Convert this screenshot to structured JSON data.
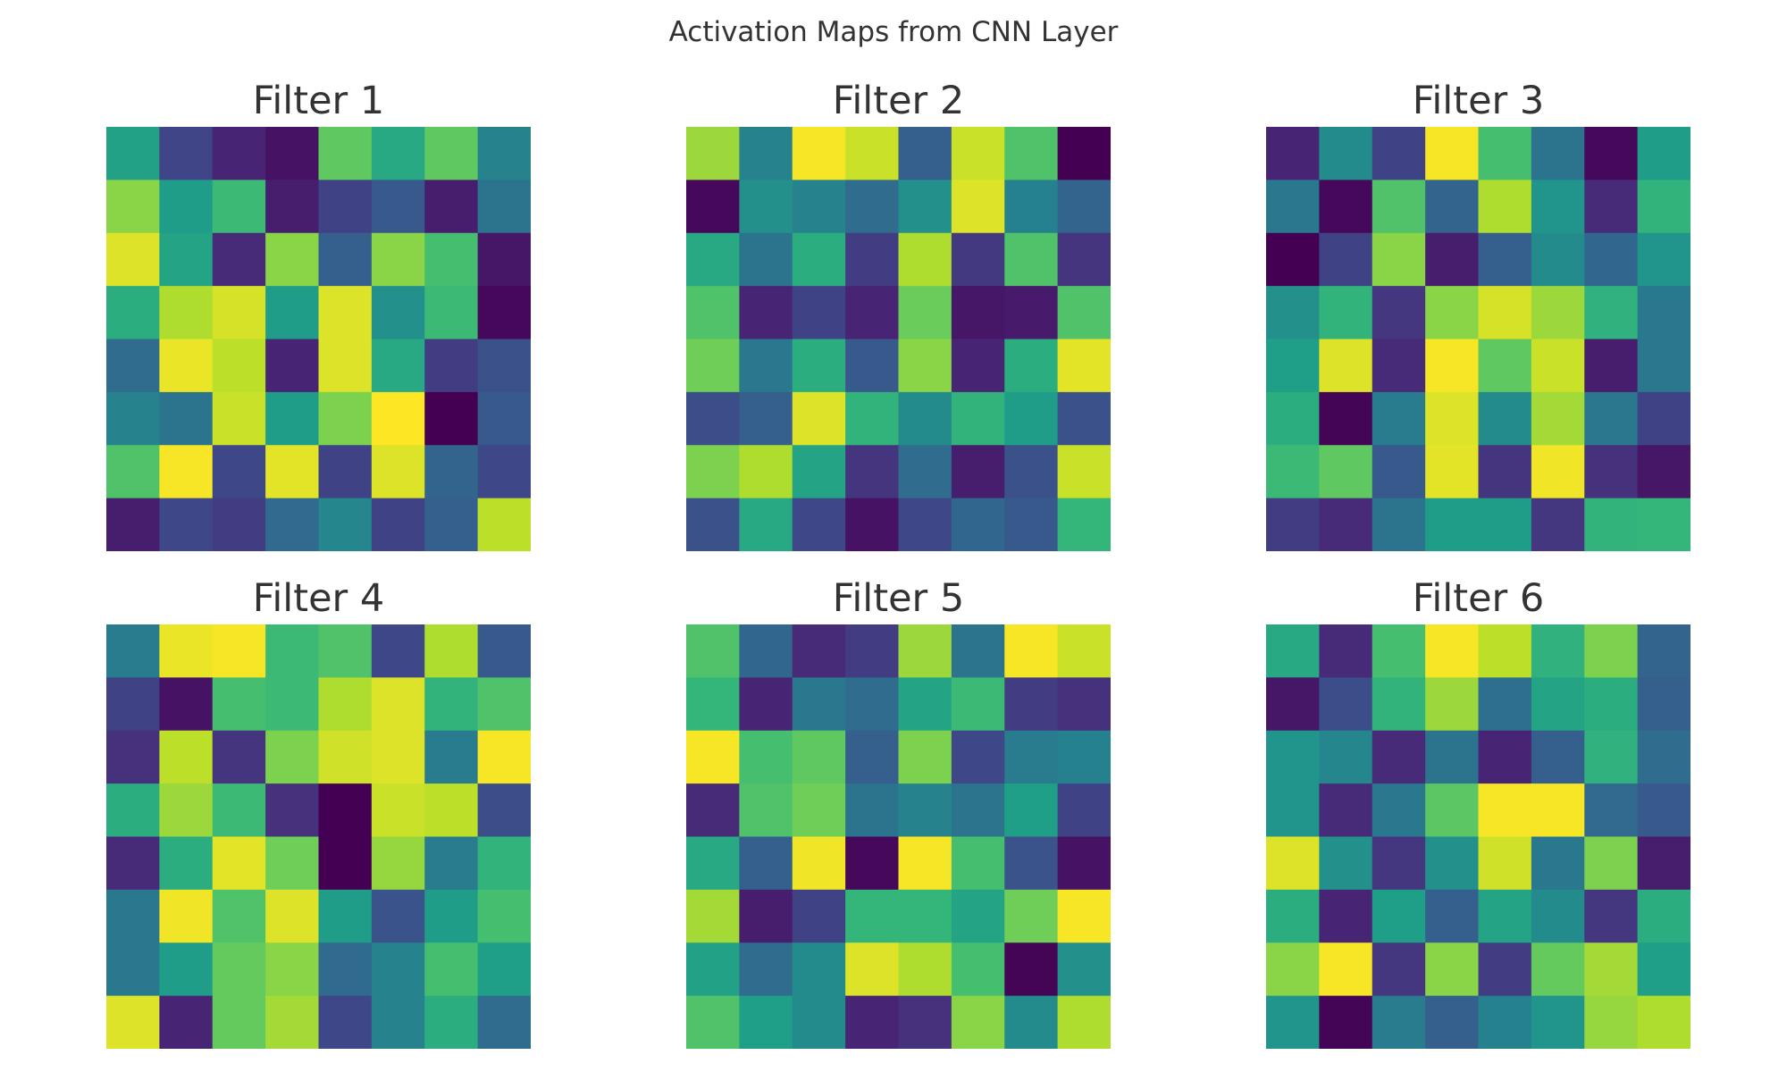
{
  "figure": {
    "title": "Activation Maps from CNN Layer"
  },
  "chart_data": {
    "type": "heatmap",
    "colormap": "viridis",
    "value_range": [
      0,
      1
    ],
    "colormap_stops": [
      "#440154",
      "#482878",
      "#3e4989",
      "#31688e",
      "#26828e",
      "#1f9e89",
      "#35b779",
      "#6ece58",
      "#b5de2b",
      "#fde725"
    ],
    "grid": false,
    "axes_visible": false,
    "panels": [
      {
        "title": "Filter 1",
        "values": [
          [
            0.57,
            0.21,
            0.1,
            0.05,
            0.75,
            0.6,
            0.75,
            0.45
          ],
          [
            0.82,
            0.55,
            0.68,
            0.08,
            0.2,
            0.28,
            0.08,
            0.38
          ],
          [
            0.95,
            0.58,
            0.12,
            0.82,
            0.3,
            0.82,
            0.7,
            0.06
          ],
          [
            0.62,
            0.88,
            0.94,
            0.55,
            0.95,
            0.5,
            0.68,
            0.02
          ],
          [
            0.35,
            0.97,
            0.9,
            0.1,
            0.95,
            0.6,
            0.18,
            0.25
          ],
          [
            0.45,
            0.38,
            0.92,
            0.55,
            0.8,
            1.0,
            0.0,
            0.28
          ],
          [
            0.72,
            0.99,
            0.22,
            0.96,
            0.2,
            0.95,
            0.32,
            0.22
          ],
          [
            0.08,
            0.22,
            0.18,
            0.34,
            0.46,
            0.2,
            0.3,
            0.9
          ]
        ]
      },
      {
        "title": "Filter 2",
        "values": [
          [
            0.85,
            0.45,
            0.99,
            0.92,
            0.3,
            0.92,
            0.72,
            0.0
          ],
          [
            0.02,
            0.5,
            0.45,
            0.35,
            0.5,
            0.95,
            0.44,
            0.32
          ],
          [
            0.6,
            0.38,
            0.62,
            0.18,
            0.88,
            0.17,
            0.72,
            0.15
          ],
          [
            0.72,
            0.1,
            0.2,
            0.1,
            0.77,
            0.06,
            0.07,
            0.72
          ],
          [
            0.78,
            0.4,
            0.62,
            0.28,
            0.82,
            0.1,
            0.62,
            0.96
          ],
          [
            0.24,
            0.3,
            0.95,
            0.65,
            0.48,
            0.65,
            0.55,
            0.25
          ],
          [
            0.8,
            0.88,
            0.58,
            0.15,
            0.35,
            0.08,
            0.25,
            0.92
          ],
          [
            0.25,
            0.6,
            0.22,
            0.05,
            0.22,
            0.33,
            0.28,
            0.66
          ]
        ]
      },
      {
        "title": "Filter 3",
        "values": [
          [
            0.1,
            0.48,
            0.2,
            0.99,
            0.7,
            0.38,
            0.02,
            0.55
          ],
          [
            0.4,
            0.02,
            0.72,
            0.32,
            0.88,
            0.52,
            0.12,
            0.65
          ],
          [
            0.0,
            0.2,
            0.82,
            0.08,
            0.3,
            0.48,
            0.33,
            0.52
          ],
          [
            0.5,
            0.65,
            0.16,
            0.82,
            0.94,
            0.85,
            0.64,
            0.4
          ],
          [
            0.56,
            0.95,
            0.12,
            0.99,
            0.75,
            0.92,
            0.08,
            0.4
          ],
          [
            0.62,
            0.01,
            0.42,
            0.95,
            0.48,
            0.86,
            0.4,
            0.2
          ],
          [
            0.68,
            0.75,
            0.28,
            0.96,
            0.15,
            0.98,
            0.14,
            0.06
          ],
          [
            0.18,
            0.12,
            0.38,
            0.55,
            0.55,
            0.16,
            0.65,
            0.66
          ]
        ]
      },
      {
        "title": "Filter 4",
        "values": [
          [
            0.42,
            0.97,
            0.99,
            0.68,
            0.72,
            0.22,
            0.88,
            0.28
          ],
          [
            0.2,
            0.05,
            0.7,
            0.68,
            0.88,
            0.95,
            0.65,
            0.72
          ],
          [
            0.14,
            0.9,
            0.15,
            0.8,
            0.93,
            0.95,
            0.42,
            0.99
          ],
          [
            0.62,
            0.85,
            0.68,
            0.14,
            0.0,
            0.92,
            0.9,
            0.24
          ],
          [
            0.12,
            0.62,
            0.96,
            0.78,
            0.0,
            0.84,
            0.42,
            0.65
          ],
          [
            0.4,
            0.98,
            0.72,
            0.95,
            0.55,
            0.26,
            0.55,
            0.7
          ],
          [
            0.4,
            0.55,
            0.76,
            0.82,
            0.34,
            0.45,
            0.7,
            0.56
          ],
          [
            0.95,
            0.1,
            0.76,
            0.86,
            0.22,
            0.45,
            0.62,
            0.35
          ]
        ]
      },
      {
        "title": "Filter 5",
        "values": [
          [
            0.72,
            0.33,
            0.12,
            0.18,
            0.85,
            0.38,
            0.99,
            0.92
          ],
          [
            0.66,
            0.1,
            0.4,
            0.35,
            0.58,
            0.68,
            0.18,
            0.14
          ],
          [
            0.99,
            0.7,
            0.75,
            0.3,
            0.8,
            0.22,
            0.42,
            0.44
          ],
          [
            0.12,
            0.72,
            0.78,
            0.38,
            0.45,
            0.38,
            0.56,
            0.2
          ],
          [
            0.6,
            0.3,
            0.98,
            0.02,
            0.99,
            0.7,
            0.26,
            0.05
          ],
          [
            0.86,
            0.08,
            0.2,
            0.66,
            0.66,
            0.58,
            0.78,
            0.99
          ],
          [
            0.57,
            0.35,
            0.48,
            0.95,
            0.88,
            0.7,
            0.01,
            0.5
          ],
          [
            0.72,
            0.56,
            0.48,
            0.1,
            0.14,
            0.82,
            0.48,
            0.88
          ]
        ]
      },
      {
        "title": "Filter 6",
        "values": [
          [
            0.6,
            0.12,
            0.7,
            0.99,
            0.9,
            0.64,
            0.8,
            0.32
          ],
          [
            0.06,
            0.24,
            0.65,
            0.85,
            0.36,
            0.58,
            0.62,
            0.3
          ],
          [
            0.52,
            0.46,
            0.12,
            0.38,
            0.1,
            0.3,
            0.64,
            0.35
          ],
          [
            0.52,
            0.12,
            0.4,
            0.74,
            0.99,
            0.99,
            0.34,
            0.28
          ],
          [
            0.95,
            0.5,
            0.16,
            0.5,
            0.93,
            0.4,
            0.8,
            0.08
          ],
          [
            0.62,
            0.1,
            0.56,
            0.3,
            0.58,
            0.48,
            0.16,
            0.62
          ],
          [
            0.82,
            0.99,
            0.16,
            0.82,
            0.18,
            0.76,
            0.86,
            0.56
          ],
          [
            0.52,
            0.01,
            0.42,
            0.3,
            0.44,
            0.52,
            0.84,
            0.88
          ]
        ]
      }
    ]
  }
}
